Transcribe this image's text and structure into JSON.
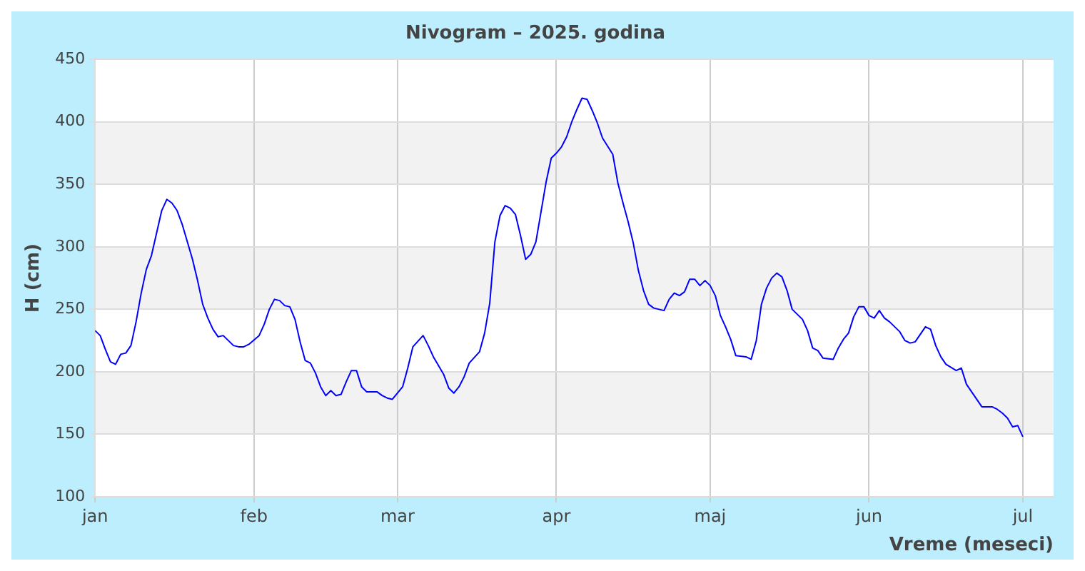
{
  "chart_data": {
    "type": "line",
    "title": "Nivogram – 2025. godina",
    "xlabel": "Vreme (meseci)",
    "ylabel": "H (cm)",
    "xlim": [
      "2025-01-01",
      "2025-07-07"
    ],
    "xticks": [
      {
        "value": "2025-01-01",
        "label": "jan"
      },
      {
        "value": "2025-02-01",
        "label": "feb"
      },
      {
        "value": "2025-03-01",
        "label": "mar"
      },
      {
        "value": "2025-04-01",
        "label": "apr"
      },
      {
        "value": "2025-05-01",
        "label": "maj"
      },
      {
        "value": "2025-06-01",
        "label": "jun"
      },
      {
        "value": "2025-07-01",
        "label": "jul"
      }
    ],
    "ylim": [
      100,
      450
    ],
    "yticks": [
      100,
      150,
      200,
      250,
      300,
      350,
      400,
      450
    ],
    "grid": true,
    "marker": "none",
    "line_style": "solid",
    "bands": [
      {
        "axis": "y",
        "from": 150,
        "to": 200,
        "color": "#f2f2f2"
      },
      {
        "axis": "y",
        "from": 250,
        "to": 300,
        "color": "#f2f2f2"
      },
      {
        "axis": "y",
        "from": 350,
        "to": 400,
        "color": "#f2f2f2"
      }
    ],
    "series": [
      {
        "color": "#0000ff",
        "x": [
          "2025-01-01",
          "2025-01-02",
          "2025-01-03",
          "2025-01-04",
          "2025-01-05",
          "2025-01-06",
          "2025-01-07",
          "2025-01-08",
          "2025-01-09",
          "2025-01-10",
          "2025-01-11",
          "2025-01-12",
          "2025-01-13",
          "2025-01-14",
          "2025-01-15",
          "2025-01-16",
          "2025-01-17",
          "2025-01-18",
          "2025-01-19",
          "2025-01-20",
          "2025-01-21",
          "2025-01-22",
          "2025-01-23",
          "2025-01-24",
          "2025-01-25",
          "2025-01-26",
          "2025-01-27",
          "2025-01-28",
          "2025-01-29",
          "2025-01-30",
          "2025-01-31",
          "2025-02-02",
          "2025-02-03",
          "2025-02-04",
          "2025-02-05",
          "2025-02-06",
          "2025-02-07",
          "2025-02-08",
          "2025-02-09",
          "2025-02-10",
          "2025-02-11",
          "2025-02-12",
          "2025-02-13",
          "2025-02-14",
          "2025-02-15",
          "2025-02-16",
          "2025-02-17",
          "2025-02-18",
          "2025-02-19",
          "2025-02-20",
          "2025-02-21",
          "2025-02-22",
          "2025-02-23",
          "2025-02-25",
          "2025-02-26",
          "2025-02-27",
          "2025-02-28",
          "2025-03-02",
          "2025-03-03",
          "2025-03-04",
          "2025-03-06",
          "2025-03-07",
          "2025-03-08",
          "2025-03-10",
          "2025-03-11",
          "2025-03-12",
          "2025-03-13",
          "2025-03-14",
          "2025-03-15",
          "2025-03-17",
          "2025-03-18",
          "2025-03-19",
          "2025-03-20",
          "2025-03-21",
          "2025-03-22",
          "2025-03-23",
          "2025-03-24",
          "2025-03-25",
          "2025-03-26",
          "2025-03-27",
          "2025-03-28",
          "2025-03-29",
          "2025-03-30",
          "2025-03-31",
          "2025-04-01",
          "2025-04-02",
          "2025-04-03",
          "2025-04-04",
          "2025-04-05",
          "2025-04-06",
          "2025-04-07",
          "2025-04-08",
          "2025-04-09",
          "2025-04-10",
          "2025-04-12",
          "2025-04-13",
          "2025-04-14",
          "2025-04-15",
          "2025-04-16",
          "2025-04-17",
          "2025-04-18",
          "2025-04-19",
          "2025-04-20",
          "2025-04-22",
          "2025-04-23",
          "2025-04-24",
          "2025-04-25",
          "2025-04-26",
          "2025-04-27",
          "2025-04-28",
          "2025-04-29",
          "2025-04-30",
          "2025-05-01",
          "2025-05-02",
          "2025-05-03",
          "2025-05-04",
          "2025-05-05",
          "2025-05-06",
          "2025-05-08",
          "2025-05-09",
          "2025-05-10",
          "2025-05-11",
          "2025-05-12",
          "2025-05-13",
          "2025-05-14",
          "2025-05-15",
          "2025-05-16",
          "2025-05-17",
          "2025-05-19",
          "2025-05-20",
          "2025-05-21",
          "2025-05-22",
          "2025-05-23",
          "2025-05-25",
          "2025-05-26",
          "2025-05-27",
          "2025-05-28",
          "2025-05-29",
          "2025-05-30",
          "2025-05-31",
          "2025-06-01",
          "2025-06-02",
          "2025-06-03",
          "2025-06-04",
          "2025-06-05",
          "2025-06-07",
          "2025-06-08",
          "2025-06-09",
          "2025-06-10",
          "2025-06-11",
          "2025-06-12",
          "2025-06-13",
          "2025-06-14",
          "2025-06-15",
          "2025-06-16",
          "2025-06-18",
          "2025-06-19",
          "2025-06-20",
          "2025-06-21",
          "2025-06-22",
          "2025-06-23",
          "2025-06-24",
          "2025-06-25",
          "2025-06-26",
          "2025-06-27",
          "2025-06-28",
          "2025-06-29",
          "2025-06-30",
          "2025-07-01"
        ],
        "values": [
          233,
          229,
          218,
          208,
          206,
          214,
          215,
          221,
          240,
          263,
          282,
          293,
          311,
          329,
          338,
          335,
          329,
          318,
          304,
          290,
          273,
          254,
          243,
          234,
          228,
          229,
          225,
          221,
          220,
          220,
          222,
          229,
          238,
          250,
          258,
          257,
          253,
          252,
          242,
          224,
          209,
          207,
          199,
          188,
          181,
          185,
          181,
          182,
          192,
          201,
          201,
          188,
          184,
          184,
          181,
          179,
          178,
          188,
          203,
          220,
          229,
          221,
          212,
          198,
          187,
          183,
          188,
          196,
          207,
          216,
          231,
          255,
          304,
          325,
          333,
          331,
          326,
          309,
          290,
          294,
          304,
          328,
          352,
          371,
          375,
          380,
          388,
          400,
          410,
          419,
          418,
          409,
          399,
          387,
          374,
          351,
          335,
          320,
          303,
          281,
          265,
          254,
          251,
          249,
          258,
          263,
          261,
          264,
          274,
          274,
          269,
          273,
          269,
          261,
          245,
          236,
          226,
          213,
          212,
          210,
          225,
          254,
          267,
          275,
          279,
          276,
          265,
          250,
          242,
          233,
          219,
          217,
          211,
          210,
          219,
          226,
          231,
          244,
          252,
          252,
          245,
          243,
          249,
          243,
          240,
          232,
          225,
          223,
          224,
          230,
          236,
          234,
          221,
          212,
          206,
          201,
          203,
          190,
          184,
          178,
          172,
          172,
          172,
          170,
          167,
          163,
          156,
          157,
          148
        ]
      }
    ]
  }
}
